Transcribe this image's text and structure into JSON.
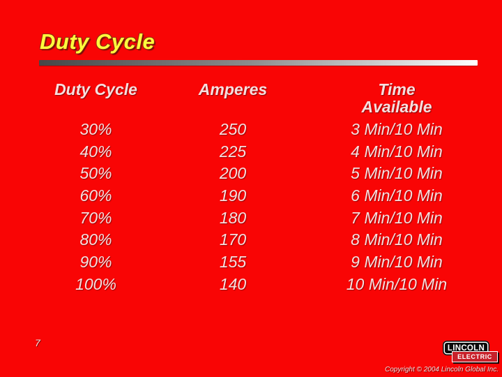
{
  "slide": {
    "title": "Duty Cycle",
    "page_number": "7",
    "copyright": "Copyright © 2004 Lincoln Global Inc.",
    "logo": {
      "line1": "LINCOLN",
      "line2": "ELECTRIC"
    },
    "colors": {
      "background": "#f90505",
      "title_yellow": "#ffff3c",
      "title_shadow": "#7d180c",
      "table_text": "#f7dede",
      "rule_gradient_start": "#474747",
      "rule_gradient_end": "#ffffff",
      "logo_black": "#0a0a0a",
      "logo_red": "#c8202a"
    }
  },
  "table": {
    "headers": [
      {
        "label": "Duty Cycle"
      },
      {
        "label": "Amperes"
      },
      {
        "label": "Time Available"
      }
    ],
    "rows": [
      {
        "duty": "30%",
        "amps": "250",
        "time": "3 Min/10 Min"
      },
      {
        "duty": "40%",
        "amps": "225",
        "time": "4 Min/10 Min"
      },
      {
        "duty": "50%",
        "amps": "200",
        "time": "5 Min/10 Min"
      },
      {
        "duty": "60%",
        "amps": "190",
        "time": "6 Min/10 Min"
      },
      {
        "duty": "70%",
        "amps": "180",
        "time": "7 Min/10 Min"
      },
      {
        "duty": "80%",
        "amps": "170",
        "time": "8 Min/10 Min"
      },
      {
        "duty": "90%",
        "amps": "155",
        "time": "9 Min/10 Min"
      },
      {
        "duty": "100%",
        "amps": "140",
        "time": "10 Min/10 Min"
      }
    ]
  },
  "chart_data": {
    "type": "table",
    "title": "Duty Cycle",
    "columns": [
      "Duty Cycle",
      "Amperes",
      "Time Available"
    ],
    "duty_cycle_pct": [
      30,
      40,
      50,
      60,
      70,
      80,
      90,
      100
    ],
    "amperes": [
      250,
      225,
      200,
      190,
      180,
      170,
      155,
      140
    ],
    "time_available": [
      "3 Min/10 Min",
      "4 Min/10 Min",
      "5 Min/10 Min",
      "6 Min/10 Min",
      "7 Min/10 Min",
      "8 Min/10 Min",
      "9 Min/10 Min",
      "10 Min/10 Min"
    ]
  }
}
